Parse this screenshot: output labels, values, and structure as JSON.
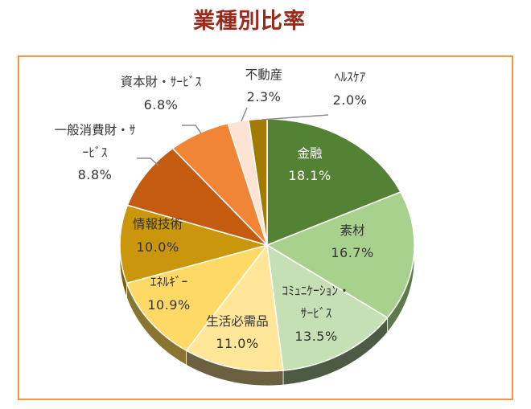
{
  "title": "業種別比率",
  "colors": {
    "title": "#9b2a1c",
    "frame_border": "#f7963c"
  },
  "chart_data": {
    "type": "pie",
    "title": "業種別比率",
    "three_d": true,
    "start_angle_deg": 0,
    "direction": "clockwise",
    "categories": [
      "金融",
      "素材",
      "コミュニケーション・サービス",
      "生活必需品",
      "エネルギー",
      "情報技術",
      "一般消費財・サービス",
      "資本財・サービス",
      "不動産",
      "ヘルスケア"
    ],
    "values": [
      18.1,
      16.7,
      13.5,
      11.0,
      10.9,
      10.0,
      8.8,
      6.8,
      2.3,
      2.0
    ],
    "unit": "%",
    "slices": [
      {
        "label": "金融",
        "display_label": "金融",
        "value": 18.1,
        "value_label": "18.1%",
        "color": "#548235",
        "side": "#3a5c25",
        "label_color": "#ffffff"
      },
      {
        "label": "素材",
        "display_label": "素材",
        "value": 16.7,
        "value_label": "16.7%",
        "color": "#a9d18e",
        "side": "#5d7a4b",
        "label_color": "#333333"
      },
      {
        "label": "コミュニケーション・サービス",
        "display_label_lines": [
          "ｺﾐｭﾆｹｰｼｮﾝ・",
          "ｻｰﾋﾞｽ"
        ],
        "value": 13.5,
        "value_label": "13.5%",
        "color": "#c5e0b4",
        "side": "#4d5a44",
        "label_color": "#333333"
      },
      {
        "label": "生活必需品",
        "display_label": "生活必需品",
        "value": 11.0,
        "value_label": "11.0%",
        "color": "#ffe699",
        "side": "#6b6040",
        "label_color": "#333333"
      },
      {
        "label": "エネルギー",
        "display_label": "ｴﾈﾙｷﾞｰ",
        "value": 10.9,
        "value_label": "10.9%",
        "color": "#ffd966",
        "side": "#8a7530",
        "label_color": "#333333"
      },
      {
        "label": "情報技術",
        "display_label": "情報技術",
        "value": 10.0,
        "value_label": "10.0%",
        "color": "#c9960c",
        "side": "#7d5e08",
        "label_color": "#333333"
      },
      {
        "label": "一般消費財・サービス",
        "display_label_lines": [
          "一般消費財・ｻ",
          "ｰﾋﾞｽ"
        ],
        "value": 8.8,
        "value_label": "8.8%",
        "color": "#c55a11",
        "side": "#7e3a0b",
        "label_color": "#333333",
        "leader_line": true
      },
      {
        "label": "資本財・サービス",
        "display_label": "資本財・ｻｰﾋﾞｽ",
        "value": 6.8,
        "value_label": "6.8%",
        "color": "#f08535",
        "side": "#a05a24",
        "label_color": "#333333",
        "leader_line": true
      },
      {
        "label": "不動産",
        "display_label": "不動産",
        "value": 2.3,
        "value_label": "2.3%",
        "color": "#fde3d4",
        "side": "#b8a397",
        "label_color": "#333333",
        "leader_line": true
      },
      {
        "label": "ヘルスケア",
        "display_label": "ﾍﾙｽｹｱ",
        "value": 2.0,
        "value_label": "2.0%",
        "color": "#a37a00",
        "side": "#6e5200",
        "label_color": "#333333",
        "leader_line": true
      }
    ],
    "legend": "none (data labels on slices)"
  }
}
